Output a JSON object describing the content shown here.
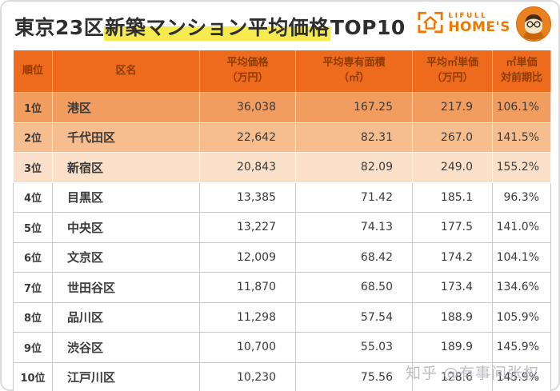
{
  "page": {
    "title_prefix": "東京23区",
    "title_highlight": "新築マンション平均価格",
    "title_suffix": "TOP10"
  },
  "logo": {
    "brand_top": "LIFULL",
    "brand_bottom": "HOME'S",
    "color": "#EE7800"
  },
  "table_style": {
    "header_bg": "#EE6A1C",
    "header_text_color": "#8D3C00",
    "row_highlight_colors": [
      "#F29D60",
      "#F6BE8E",
      "#FAE0C8"
    ]
  },
  "watermark": {
    "text": "知乎 @有事问张权",
    "color": "#AEAEB8"
  },
  "chart_data": {
    "type": "table",
    "title": "東京23区新築マンション平均価格TOP10",
    "columns": [
      "順位",
      "区名",
      "平均価格\n（万円）",
      "平均専有面積\n（㎡）",
      "平均㎡単価\n（万円）",
      "㎡単価\n対前期比"
    ],
    "rows": [
      [
        "1位",
        "港区",
        "36,038",
        "167.25",
        "217.9",
        "106.1%"
      ],
      [
        "2位",
        "千代田区",
        "22,642",
        "82.31",
        "267.0",
        "141.5%"
      ],
      [
        "3位",
        "新宿区",
        "20,843",
        "82.09",
        "249.0",
        "155.2%"
      ],
      [
        "4位",
        "目黒区",
        "13,385",
        "71.42",
        "185.1",
        "96.3%"
      ],
      [
        "5位",
        "中央区",
        "13,227",
        "74.13",
        "177.5",
        "141.0%"
      ],
      [
        "6位",
        "文京区",
        "12,009",
        "68.42",
        "174.2",
        "104.1%"
      ],
      [
        "7位",
        "世田谷区",
        "11,870",
        "68.50",
        "173.4",
        "134.6%"
      ],
      [
        "8位",
        "品川区",
        "11,298",
        "57.54",
        "188.9",
        "105.9%"
      ],
      [
        "9位",
        "渋谷区",
        "10,700",
        "55.03",
        "189.9",
        "145.9%"
      ],
      [
        "10位",
        "江戸川区",
        "10,230",
        "75.56",
        "128.6",
        "145.9%"
      ]
    ]
  }
}
